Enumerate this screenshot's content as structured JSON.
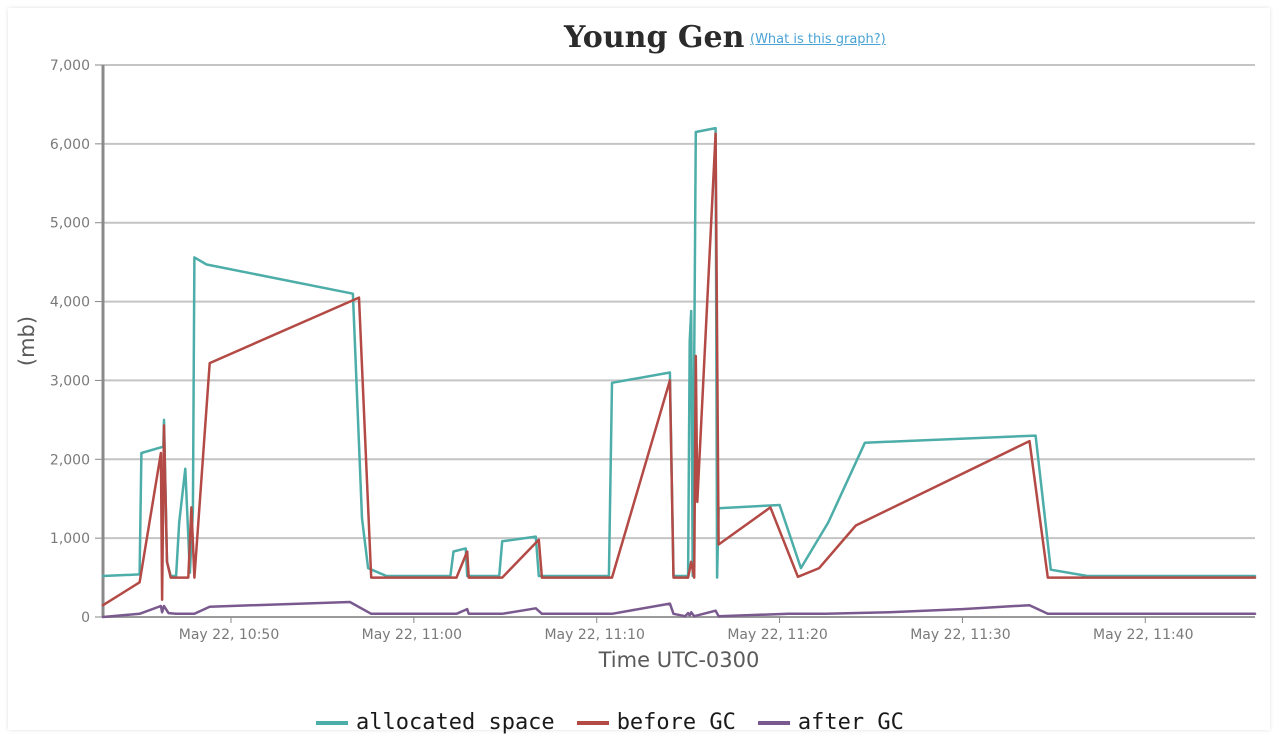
{
  "chart_data": {
    "type": "line",
    "title": "Young Gen",
    "help_link": "(What is this graph?)",
    "ylabel": "(mb)",
    "xlabel": "Time UTC-0300",
    "ylim": [
      0,
      7000
    ],
    "xlim_minutes": [
      10.43,
      11.46
    ],
    "grid": "horizontal",
    "legend_position": "bottom",
    "y_ticks": [
      "0",
      "1,000",
      "2,000",
      "3,000",
      "4,000",
      "5,000",
      "6,000",
      "7,000"
    ],
    "x_ticks": [
      "May 22, 10:50",
      "May 22, 11:00",
      "May 22, 11:10",
      "May 22, 11:20",
      "May 22, 11:30",
      "May 22, 11:40"
    ],
    "series": [
      {
        "name": "allocated space",
        "color": "#4dada8",
        "points": [
          [
            "10:43:00",
            520
          ],
          [
            "10:45:00",
            540
          ],
          [
            "10:45:06",
            2080
          ],
          [
            "10:46:18",
            2160
          ],
          [
            "10:46:20",
            2500
          ],
          [
            "10:46:30",
            700
          ],
          [
            "10:46:42",
            520
          ],
          [
            "10:47:00",
            520
          ],
          [
            "10:47:10",
            1200
          ],
          [
            "10:47:30",
            1880
          ],
          [
            "10:47:45",
            560
          ],
          [
            "10:47:55",
            1350
          ],
          [
            "10:48:00",
            4560
          ],
          [
            "10:48:40",
            4470
          ],
          [
            "10:56:40",
            4100
          ],
          [
            "10:57:10",
            1250
          ],
          [
            "10:57:30",
            620
          ],
          [
            "10:58:30",
            520
          ],
          [
            "11:02:00",
            520
          ],
          [
            "11:02:10",
            830
          ],
          [
            "11:02:40",
            860
          ],
          [
            "11:02:50",
            870
          ],
          [
            "11:02:55",
            520
          ],
          [
            "11:04:40",
            520
          ],
          [
            "11:04:50",
            960
          ],
          [
            "11:06:40",
            1020
          ],
          [
            "11:06:50",
            520
          ],
          [
            "11:10:40",
            520
          ],
          [
            "11:10:50",
            2970
          ],
          [
            "11:14:00",
            3100
          ],
          [
            "11:14:12",
            520
          ],
          [
            "11:14:50",
            520
          ],
          [
            "11:15:00",
            520
          ],
          [
            "11:15:05",
            3500
          ],
          [
            "11:15:10",
            3880
          ],
          [
            "11:15:15",
            520
          ],
          [
            "11:15:25",
            6150
          ],
          [
            "11:16:30",
            6200
          ],
          [
            "11:16:35",
            500
          ],
          [
            "11:16:40",
            1380
          ],
          [
            "11:20:00",
            1420
          ],
          [
            "11:21:10",
            620
          ],
          [
            "11:22:40",
            1200
          ],
          [
            "11:24:40",
            2210
          ],
          [
            "11:34:00",
            2300
          ],
          [
            "11:34:50",
            600
          ],
          [
            "11:36:50",
            520
          ],
          [
            "11:46:00",
            520
          ]
        ]
      },
      {
        "name": "before GC",
        "color": "#b34a45",
        "points": [
          [
            "10:43:00",
            150
          ],
          [
            "10:45:00",
            440
          ],
          [
            "10:46:10",
            2080
          ],
          [
            "10:46:14",
            220
          ],
          [
            "10:46:20",
            2430
          ],
          [
            "10:46:30",
            700
          ],
          [
            "10:46:42",
            500
          ],
          [
            "10:47:00",
            500
          ],
          [
            "10:47:40",
            500
          ],
          [
            "10:47:50",
            1390
          ],
          [
            "10:48:00",
            500
          ],
          [
            "10:48:50",
            3220
          ],
          [
            "10:57:00",
            4050
          ],
          [
            "10:57:40",
            500
          ],
          [
            "11:02:20",
            500
          ],
          [
            "11:02:55",
            830
          ],
          [
            "11:03:00",
            500
          ],
          [
            "11:04:50",
            500
          ],
          [
            "11:06:50",
            980
          ],
          [
            "11:07:00",
            500
          ],
          [
            "11:10:50",
            500
          ],
          [
            "11:14:00",
            3000
          ],
          [
            "11:14:12",
            500
          ],
          [
            "11:15:00",
            500
          ],
          [
            "11:15:10",
            700
          ],
          [
            "11:15:20",
            500
          ],
          [
            "11:15:25",
            3310
          ],
          [
            "11:15:30",
            1460
          ],
          [
            "11:16:30",
            6130
          ],
          [
            "11:16:40",
            920
          ],
          [
            "11:19:30",
            1390
          ],
          [
            "11:21:00",
            510
          ],
          [
            "11:22:10",
            620
          ],
          [
            "11:24:10",
            1160
          ],
          [
            "11:33:40",
            2230
          ],
          [
            "11:34:40",
            500
          ],
          [
            "11:46:00",
            500
          ]
        ]
      },
      {
        "name": "after GC",
        "color": "#7a5a8e",
        "points": [
          [
            "10:43:00",
            0
          ],
          [
            "10:45:00",
            40
          ],
          [
            "10:46:10",
            140
          ],
          [
            "10:46:14",
            60
          ],
          [
            "10:46:20",
            140
          ],
          [
            "10:46:35",
            50
          ],
          [
            "10:47:00",
            40
          ],
          [
            "10:48:00",
            40
          ],
          [
            "10:48:50",
            130
          ],
          [
            "10:56:30",
            190
          ],
          [
            "10:57:40",
            40
          ],
          [
            "11:02:20",
            40
          ],
          [
            "11:02:55",
            100
          ],
          [
            "11:03:00",
            40
          ],
          [
            "11:04:50",
            40
          ],
          [
            "11:06:40",
            110
          ],
          [
            "11:07:00",
            40
          ],
          [
            "11:10:50",
            40
          ],
          [
            "11:14:00",
            170
          ],
          [
            "11:14:12",
            40
          ],
          [
            "11:14:50",
            10
          ],
          [
            "11:15:00",
            50
          ],
          [
            "11:15:05",
            20
          ],
          [
            "11:15:10",
            60
          ],
          [
            "11:15:20",
            10
          ],
          [
            "11:16:30",
            80
          ],
          [
            "11:16:40",
            10
          ],
          [
            "11:20:30",
            40
          ],
          [
            "11:22:30",
            40
          ],
          [
            "11:26:00",
            60
          ],
          [
            "11:30:00",
            100
          ],
          [
            "11:33:40",
            150
          ],
          [
            "11:34:40",
            40
          ],
          [
            "11:46:00",
            40
          ]
        ]
      }
    ]
  }
}
